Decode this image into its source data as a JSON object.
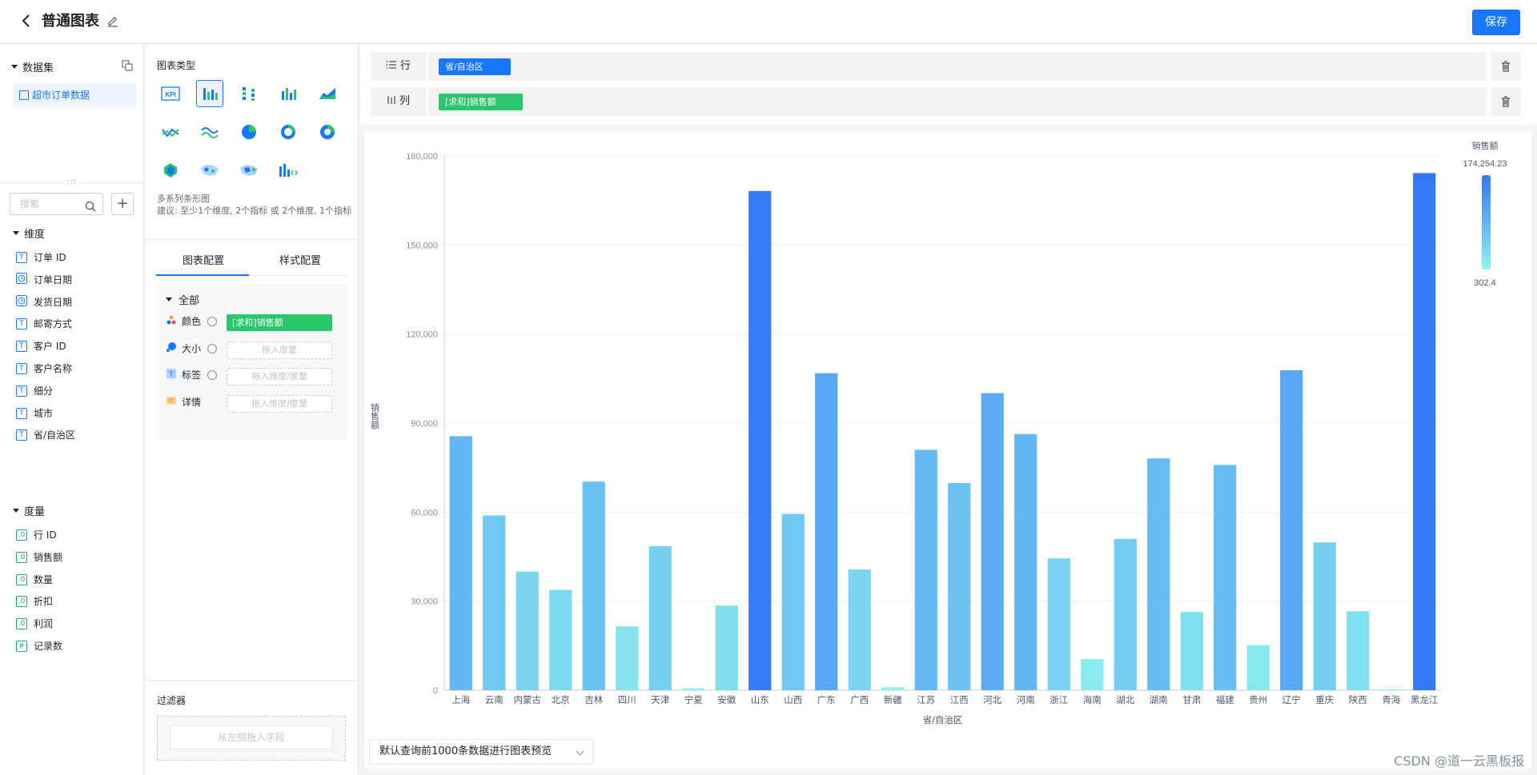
{
  "header": {
    "title": "普通图表",
    "save_label": "保存"
  },
  "dataset": {
    "section_label": "数据集",
    "selected": "超市订单数据"
  },
  "fields": {
    "search_placeholder": "搜索",
    "dimension_label": "维度",
    "dimensions": [
      "订单 ID",
      "订单日期",
      "发货日期",
      "邮寄方式",
      "客户 ID",
      "客户名称",
      "细分",
      "城市",
      "省/自治区"
    ],
    "dimension_icons": [
      "T",
      "clock",
      "clock",
      "T",
      "T",
      "T",
      "T",
      "T",
      "T"
    ],
    "measure_label": "度量",
    "measures": [
      "行 ID",
      "销售额",
      "数量",
      "折扣",
      "利润",
      "记录数"
    ],
    "measure_icons": [
      ".0",
      ".0",
      ".0",
      ".0",
      ".0",
      "#"
    ]
  },
  "chart_types": {
    "title": "图表类型",
    "desc_title": "多系列条形图",
    "desc_hint": "建议: 至少1个维度, 2个指标 或 2个维度, 1个指标"
  },
  "config": {
    "tabs": [
      "图表配置",
      "样式配置"
    ],
    "group": "全部",
    "rows": [
      {
        "label": "颜色",
        "value": "[求和]销售额",
        "placeholder": ""
      },
      {
        "label": "大小",
        "value": "",
        "placeholder": "拖入度量"
      },
      {
        "label": "标签",
        "value": "",
        "placeholder": "拖入维度/度量"
      },
      {
        "label": "详情",
        "value": "",
        "placeholder": "拖入维度/度量"
      }
    ]
  },
  "filter": {
    "title": "过滤器",
    "placeholder": "从左侧拖入字段"
  },
  "shelves": {
    "row_label": "行",
    "row_field": "省/自治区",
    "col_label": "列",
    "col_field": "[求和]销售额"
  },
  "footer": {
    "preview_select": "默认查询前1000条数据进行图表预览"
  },
  "watermark": "CSDN @道一云黑板报",
  "colors": {
    "accent": "#1677ff",
    "measure_green": "#2bc56b",
    "bar_low": "#8ff2ee",
    "bar_high": "#3478f6"
  },
  "chart_data": {
    "type": "bar",
    "xlabel": "省/自治区",
    "ylabel": "销售额",
    "ylim": [
      0,
      180000
    ],
    "yticks": [
      0,
      30000,
      60000,
      90000,
      120000,
      150000,
      180000
    ],
    "ytick_labels": [
      "0",
      "30,000",
      "60,000",
      "90,000",
      "120,000",
      "150,000",
      "180,000"
    ],
    "legend": {
      "title": "销售额",
      "max_label": "174,254.23",
      "min_label": "302.4",
      "min": 302.4,
      "max": 174254.23,
      "position": "top-right"
    },
    "categories": [
      "上海",
      "云南",
      "内蒙古",
      "北京",
      "吉林",
      "四川",
      "天津",
      "宁夏",
      "安徽",
      "山东",
      "山西",
      "广东",
      "广西",
      "新疆",
      "江苏",
      "江西",
      "河北",
      "河南",
      "浙江",
      "海南",
      "湖北",
      "湖南",
      "甘肃",
      "福建",
      "贵州",
      "辽宁",
      "重庆",
      "陕西",
      "青海",
      "黑龙江"
    ],
    "values": [
      85600,
      58900,
      40000,
      33800,
      70300,
      21500,
      48500,
      650,
      28500,
      168200,
      59400,
      106800,
      40700,
      1000,
      81000,
      69800,
      100100,
      86300,
      44400,
      10500,
      51000,
      78100,
      26400,
      75900,
      15200,
      107800,
      49800,
      26600,
      302.4,
      174254.23
    ]
  }
}
